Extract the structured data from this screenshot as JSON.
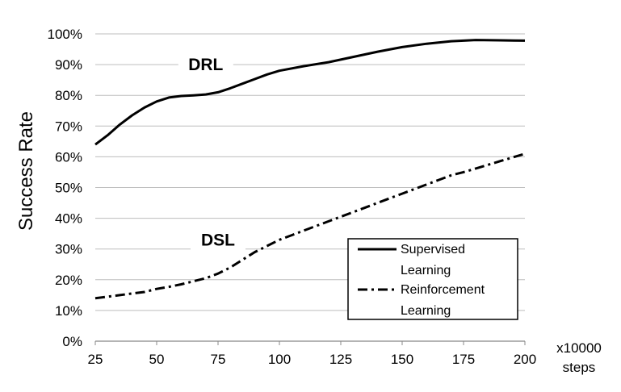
{
  "chart_data": {
    "type": "line",
    "xlabel": "",
    "ylabel": "Success Rate",
    "x_unit_lines": [
      "x10000",
      "steps"
    ],
    "xlim": [
      25,
      200
    ],
    "ylim": [
      0,
      100
    ],
    "x_ticks": [
      25,
      50,
      75,
      100,
      125,
      150,
      175,
      200
    ],
    "y_ticks": [
      0,
      10,
      20,
      30,
      40,
      50,
      60,
      70,
      80,
      90,
      100
    ],
    "y_tick_labels": [
      "0%",
      "10%",
      "20%",
      "30%",
      "40%",
      "50%",
      "60%",
      "70%",
      "80%",
      "90%",
      "100%"
    ],
    "grid": true,
    "legend_position": "bottom-right",
    "series": [
      {
        "name": "Supervised Learning",
        "legend_lines": [
          "Supervised",
          "Learning"
        ],
        "style": "solid",
        "x": [
          25,
          30,
          35,
          40,
          45,
          50,
          55,
          60,
          65,
          70,
          75,
          80,
          85,
          90,
          95,
          100,
          110,
          120,
          130,
          140,
          150,
          160,
          170,
          180,
          190,
          200
        ],
        "y": [
          64,
          67,
          70.5,
          73.5,
          76,
          78,
          79.3,
          79.8,
          80,
          80.3,
          81,
          82.3,
          83.8,
          85.3,
          86.8,
          88,
          89.5,
          90.8,
          92.5,
          94.2,
          95.7,
          96.8,
          97.6,
          98,
          97.9,
          97.8
        ]
      },
      {
        "name": "Reinforcement Learning",
        "legend_lines": [
          "Reinforcement",
          "Learning"
        ],
        "style": "dash-dot",
        "x": [
          25,
          30,
          35,
          40,
          45,
          50,
          55,
          60,
          65,
          70,
          75,
          80,
          85,
          90,
          95,
          100,
          105,
          110,
          115,
          120,
          125,
          130,
          135,
          140,
          145,
          150,
          155,
          160,
          165,
          170,
          175,
          180,
          185,
          190,
          195,
          200
        ],
        "y": [
          14,
          14.5,
          15,
          15.5,
          16,
          17,
          17.7,
          18.5,
          19.5,
          20.5,
          22,
          24,
          26.5,
          29,
          31,
          33,
          34.5,
          36,
          37.5,
          39,
          40.5,
          42,
          43.5,
          45,
          46.5,
          48,
          49.5,
          51,
          52.5,
          54,
          55,
          56.2,
          57.4,
          58.6,
          59.8,
          61
        ]
      }
    ],
    "annotations": [
      {
        "text": "DRL",
        "x": 70,
        "y": 90
      },
      {
        "text": "DSL",
        "x": 75,
        "y": 33
      }
    ]
  }
}
